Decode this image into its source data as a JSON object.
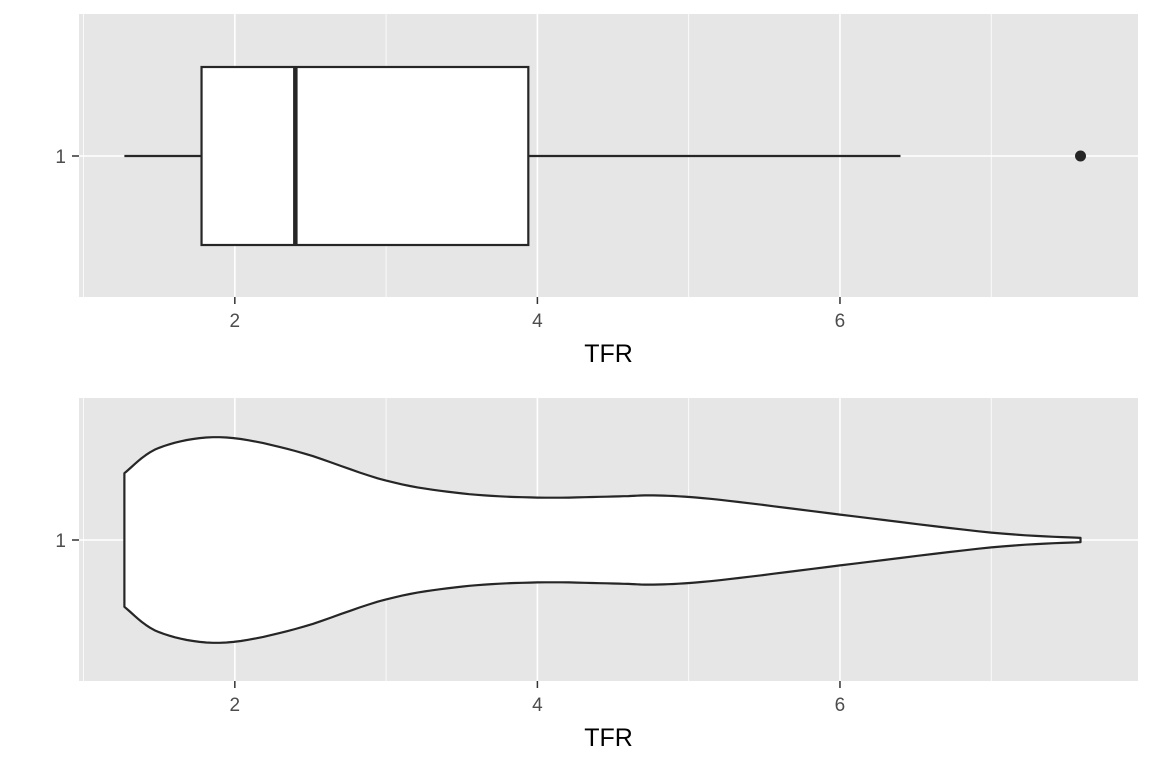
{
  "chart_data": [
    {
      "type": "box",
      "xlabel": "TFR",
      "ylabel": "",
      "xlim": [
        0.97,
        7.97
      ],
      "x_ticks": [
        2,
        4,
        6
      ],
      "x_tick_labels": [
        "2",
        "4",
        "6"
      ],
      "y_tick_labels": [
        "1"
      ],
      "grid": true,
      "categories": [
        "1"
      ],
      "box": {
        "min": 1.27,
        "q1": 1.78,
        "median": 2.4,
        "q3": 3.94,
        "max": 6.4,
        "outliers": [
          7.59
        ]
      }
    },
    {
      "type": "violin",
      "xlabel": "TFR",
      "ylabel": "",
      "xlim": [
        0.97,
        7.97
      ],
      "x_ticks": [
        2,
        4,
        6
      ],
      "x_tick_labels": [
        "2",
        "4",
        "6"
      ],
      "y_tick_labels": [
        "1"
      ],
      "grid": true,
      "categories": [
        "1"
      ],
      "range": [
        1.27,
        7.59
      ],
      "density": {
        "x": [
          1.27,
          1.5,
          1.9,
          2.4,
          3.0,
          3.5,
          4.0,
          4.5,
          4.8,
          5.2,
          6.0,
          7.0,
          7.59
        ],
        "width": [
          0.63,
          0.87,
          0.97,
          0.84,
          0.56,
          0.44,
          0.4,
          0.41,
          0.42,
          0.38,
          0.24,
          0.07,
          0.02
        ]
      }
    }
  ]
}
